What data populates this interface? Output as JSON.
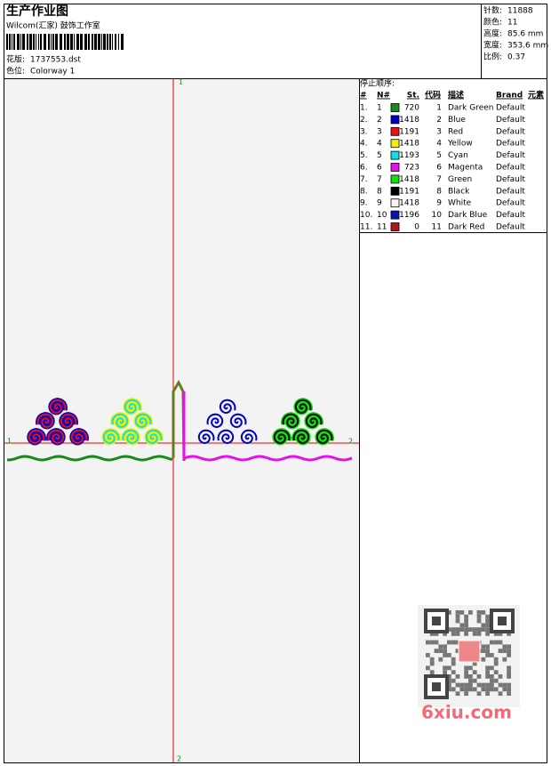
{
  "header": {
    "title": "生产作业图",
    "company": "Wilcom(汇家) 鼓饰工作室",
    "design_label": "花版:",
    "design": "1737553.dst",
    "colorway_label": "色位:",
    "colorway": "Colorway 1"
  },
  "stats": [
    {
      "label": "针数:",
      "value": "11888"
    },
    {
      "label": "颜色:",
      "value": "11"
    },
    {
      "label": "高度:",
      "value": "85.6 mm"
    },
    {
      "label": "宽度:",
      "value": "353.6 mm"
    },
    {
      "label": "比例:",
      "value": "0.37"
    }
  ],
  "canvas": {
    "markers": {
      "top": "1",
      "bottom": "2",
      "left": "1",
      "right": "2"
    }
  },
  "stop_sequence": {
    "title": "停止顺序:",
    "columns": [
      "#",
      "N#",
      "St.",
      "代码",
      "描述",
      "Brand",
      "元素"
    ],
    "rows": [
      {
        "stop": "1.",
        "needle": "1",
        "color": "#1a8a1a",
        "stitches": 720,
        "code": 1,
        "description": "Dark Green",
        "brand": "Default"
      },
      {
        "stop": "2.",
        "needle": "2",
        "color": "#0000c8",
        "stitches": 1418,
        "code": 2,
        "description": "Blue",
        "brand": "Default"
      },
      {
        "stop": "3.",
        "needle": "3",
        "color": "#e81010",
        "stitches": 1191,
        "code": 3,
        "description": "Red",
        "brand": "Default"
      },
      {
        "stop": "4.",
        "needle": "4",
        "color": "#f0f000",
        "stitches": 1418,
        "code": 4,
        "description": "Yellow",
        "brand": "Default"
      },
      {
        "stop": "5.",
        "needle": "5",
        "color": "#10e0e0",
        "stitches": 1193,
        "code": 5,
        "description": "Cyan",
        "brand": "Default"
      },
      {
        "stop": "6.",
        "needle": "6",
        "color": "#e810e8",
        "stitches": 723,
        "code": 6,
        "description": "Magenta",
        "brand": "Default"
      },
      {
        "stop": "7.",
        "needle": "7",
        "color": "#10e010",
        "stitches": 1418,
        "code": 7,
        "description": "Green",
        "brand": "Default"
      },
      {
        "stop": "8.",
        "needle": "8",
        "color": "#000000",
        "stitches": 1191,
        "code": 8,
        "description": "Black",
        "brand": "Default"
      },
      {
        "stop": "9.",
        "needle": "9",
        "color": "#f4f4f4",
        "stitches": 1418,
        "code": 9,
        "description": "White",
        "brand": "Default"
      },
      {
        "stop": "10.",
        "needle": "10",
        "color": "#0a14b4",
        "stitches": 1196,
        "code": 10,
        "description": "Dark Blue",
        "brand": "Default"
      },
      {
        "stop": "11.",
        "needle": "11",
        "color": "#b01818",
        "stitches": 0,
        "code": 11,
        "description": "Dark Red",
        "brand": "Default"
      }
    ]
  },
  "watermark": "6xiu.com"
}
